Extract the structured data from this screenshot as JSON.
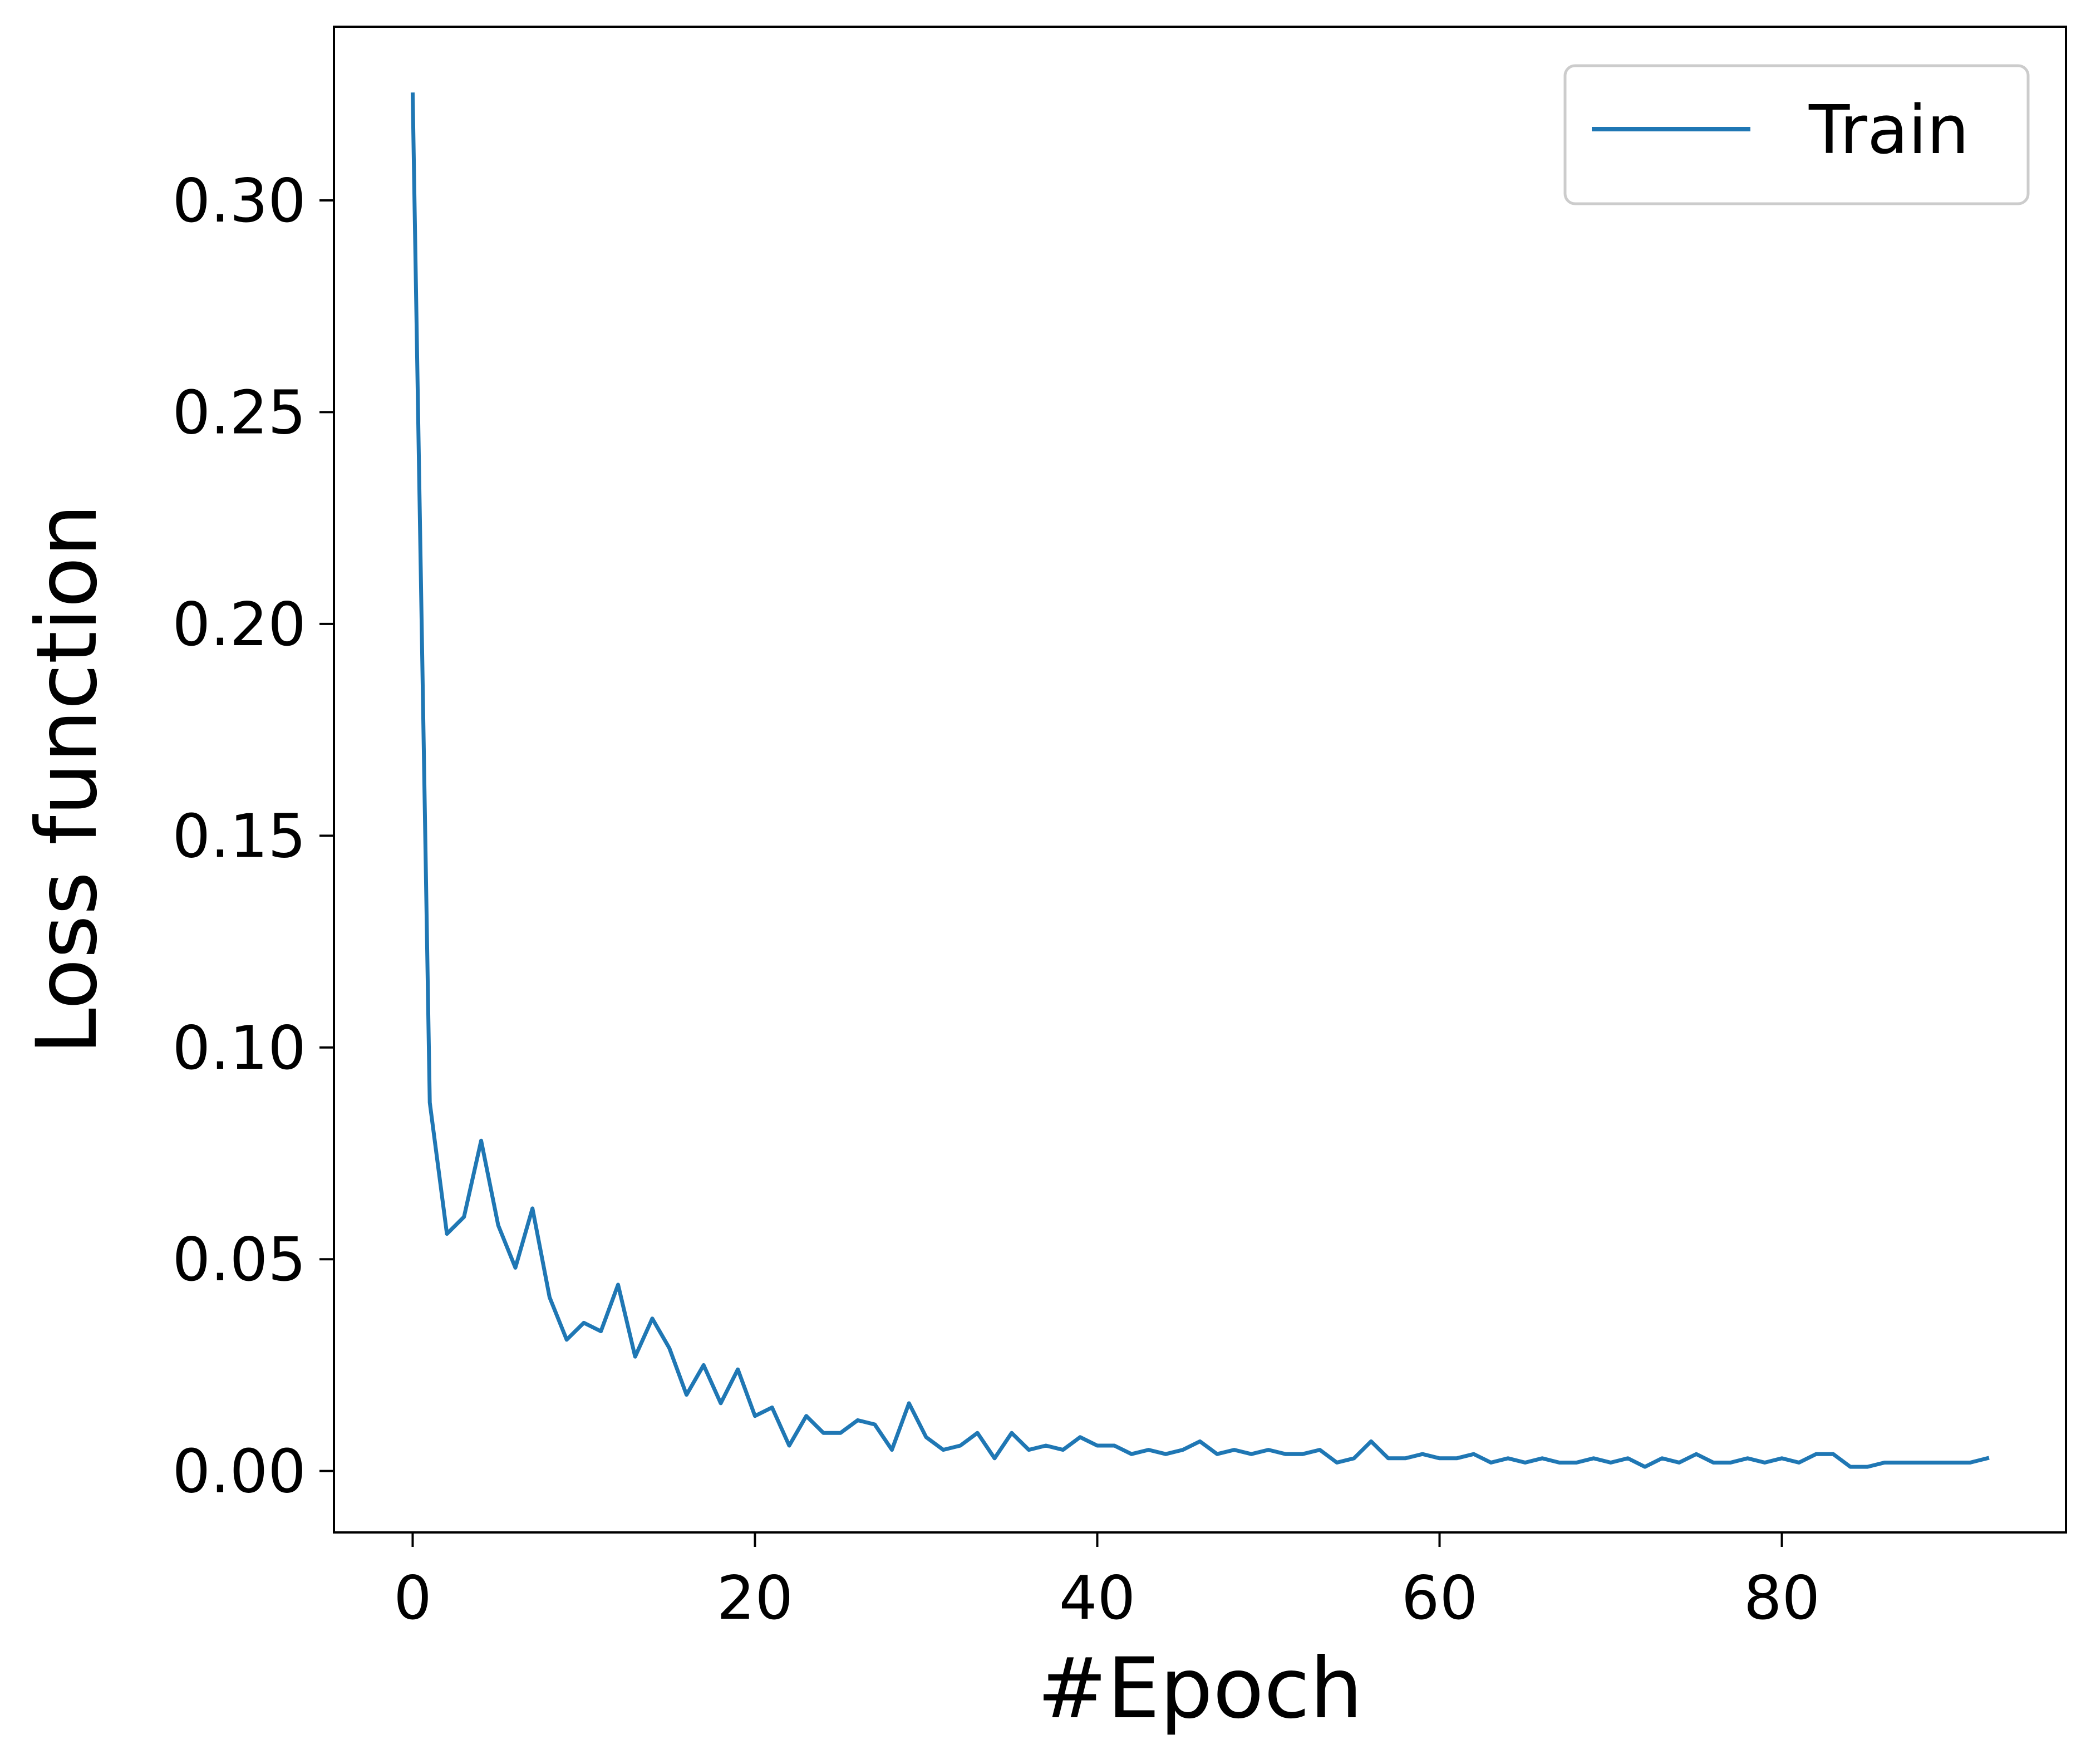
{
  "chart_data": {
    "type": "line",
    "title": "",
    "xlabel": "#Epoch",
    "ylabel": "Loss function",
    "xlim": [
      -4.6,
      96.6
    ],
    "ylim": [
      -0.0145,
      0.341
    ],
    "xticks": [
      0,
      20,
      40,
      60,
      80
    ],
    "xtick_labels": [
      "0",
      "20",
      "40",
      "60",
      "80"
    ],
    "yticks": [
      0.0,
      0.05,
      0.1,
      0.15,
      0.2,
      0.25,
      0.3
    ],
    "ytick_labels": [
      "0.00",
      "0.05",
      "0.10",
      "0.15",
      "0.20",
      "0.25",
      "0.30"
    ],
    "grid": false,
    "legend_position": "top-right",
    "series": [
      {
        "name": "Train",
        "color": "#1f77b4",
        "x": [
          0,
          1,
          2,
          3,
          4,
          5,
          6,
          7,
          8,
          9,
          10,
          11,
          12,
          13,
          14,
          15,
          16,
          17,
          18,
          19,
          20,
          21,
          22,
          23,
          24,
          25,
          26,
          27,
          28,
          29,
          30,
          31,
          32,
          33,
          34,
          35,
          36,
          37,
          38,
          39,
          40,
          41,
          42,
          43,
          44,
          45,
          46,
          47,
          48,
          49,
          50,
          51,
          52,
          53,
          54,
          55,
          56,
          57,
          58,
          59,
          60,
          61,
          62,
          63,
          64,
          65,
          66,
          67,
          68,
          69,
          70,
          71,
          72,
          73,
          74,
          75,
          76,
          77,
          78,
          79,
          80,
          81,
          82,
          83,
          84,
          85,
          86,
          87,
          88,
          89,
          90,
          91,
          92
        ],
        "y": [
          0.325,
          0.087,
          0.056,
          0.06,
          0.078,
          0.058,
          0.048,
          0.062,
          0.041,
          0.031,
          0.035,
          0.033,
          0.044,
          0.027,
          0.036,
          0.029,
          0.018,
          0.025,
          0.016,
          0.024,
          0.013,
          0.015,
          0.006,
          0.013,
          0.009,
          0.009,
          0.012,
          0.011,
          0.005,
          0.016,
          0.008,
          0.005,
          0.006,
          0.009,
          0.003,
          0.009,
          0.005,
          0.006,
          0.005,
          0.008,
          0.006,
          0.006,
          0.004,
          0.005,
          0.004,
          0.005,
          0.007,
          0.004,
          0.005,
          0.004,
          0.005,
          0.004,
          0.004,
          0.005,
          0.002,
          0.003,
          0.007,
          0.003,
          0.003,
          0.004,
          0.003,
          0.003,
          0.004,
          0.002,
          0.003,
          0.002,
          0.003,
          0.002,
          0.002,
          0.003,
          0.002,
          0.003,
          0.001,
          0.003,
          0.002,
          0.004,
          0.002,
          0.002,
          0.003,
          0.002,
          0.003,
          0.002,
          0.004,
          0.004,
          0.001,
          0.001,
          0.002,
          0.002,
          0.002,
          0.002,
          0.002,
          0.002,
          0.003
        ]
      }
    ]
  }
}
